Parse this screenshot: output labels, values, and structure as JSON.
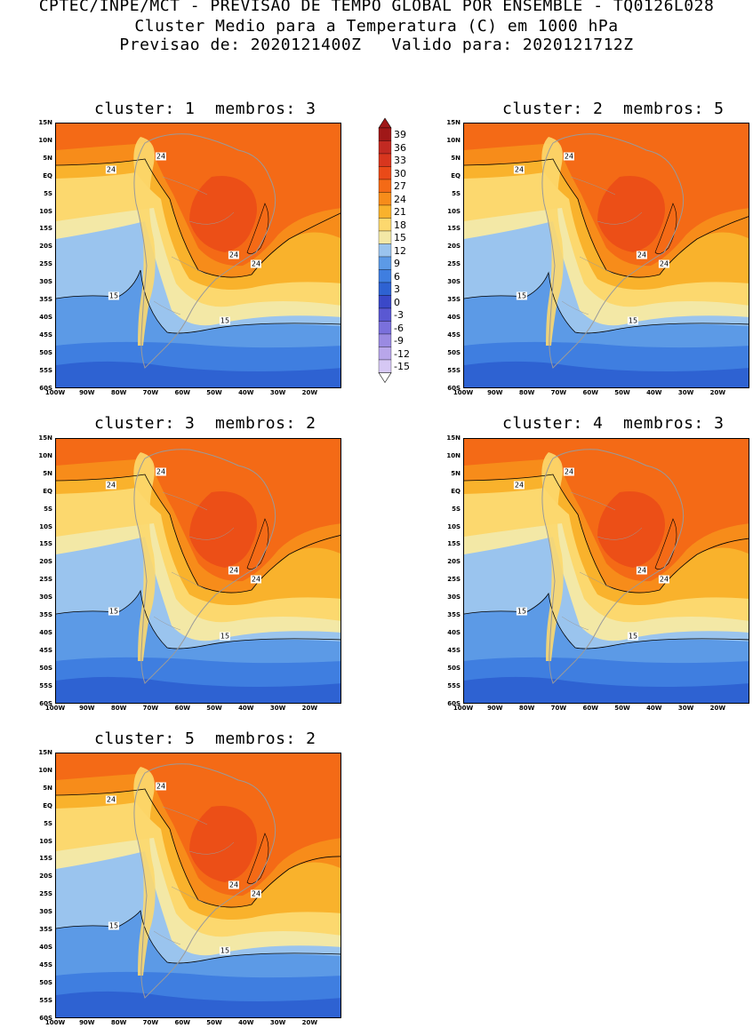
{
  "header": {
    "line1": "CPTEC/INPE/MCT - PREVISAO DE TEMPO GLOBAL POR ENSEMBLE - TQ0126L028",
    "line2": "Cluster Medio para a Temperatura (C) em 1000 hPa",
    "line3": "Previsao de: 2020121400Z   Valido para: 2020121712Z"
  },
  "lat_labels": [
    "15N",
    "10N",
    "5N",
    "EQ",
    "5S",
    "10S",
    "15S",
    "20S",
    "25S",
    "30S",
    "35S",
    "40S",
    "45S",
    "50S",
    "55S",
    "60S"
  ],
  "lon_labels": [
    "100W",
    "90W",
    "80W",
    "70W",
    "60W",
    "50W",
    "40W",
    "30W",
    "20W"
  ],
  "panels": [
    {
      "title": "cluster: 1  membros: 3",
      "contours": [
        "24",
        "24",
        "24",
        "24",
        "15",
        "15"
      ]
    },
    {
      "title": "cluster: 2  membros: 5",
      "contours": [
        "24",
        "24",
        "24",
        "24",
        "15",
        "15"
      ]
    },
    {
      "title": "cluster: 3  membros: 2",
      "contours": [
        "24",
        "24",
        "24",
        "24",
        "15",
        "15"
      ]
    },
    {
      "title": "cluster: 4  membros: 3",
      "contours": [
        "24",
        "24",
        "24",
        "24",
        "15",
        "15"
      ]
    },
    {
      "title": "cluster: 5  membros: 2",
      "contours": [
        "24",
        "24",
        "24",
        "24",
        "15",
        "15"
      ]
    }
  ],
  "colorbar": {
    "labels": [
      "39",
      "36",
      "33",
      "30",
      "27",
      "24",
      "21",
      "18",
      "15",
      "12",
      "9",
      "6",
      "3",
      "0",
      "-3",
      "-6",
      "-9",
      "-12",
      "-15"
    ],
    "colors": [
      "#a01818",
      "#c22a22",
      "#d8361e",
      "#ea4a18",
      "#f46a16",
      "#f78c1a",
      "#f9b22c",
      "#fcd86e",
      "#f3e8a6",
      "#9ac4ee",
      "#5c9ae6",
      "#3f7ee0",
      "#2e62d2",
      "#3a48c8",
      "#5a58d2",
      "#7a70dc",
      "#9a8ae2",
      "#b8a6ea",
      "#d6c8f4"
    ]
  }
}
